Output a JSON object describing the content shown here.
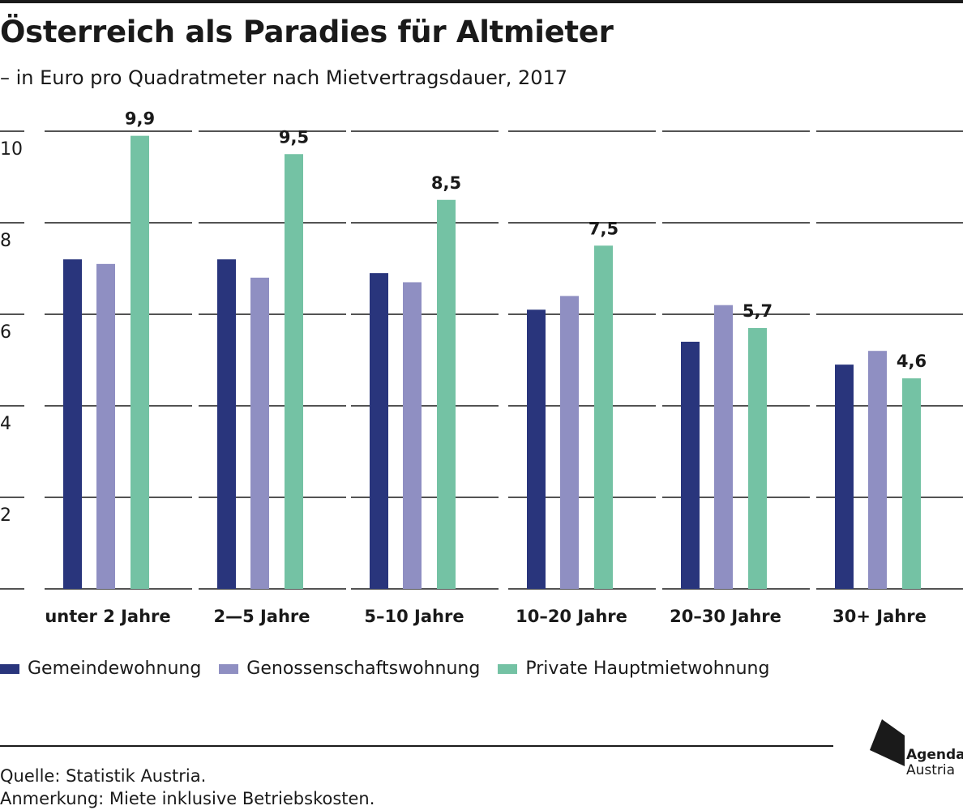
{
  "header": {
    "title": "Österreich als Paradies für Altmieter",
    "subtitle": "– in Euro pro Quadratmeter nach Mietvertragsdauer, 2017"
  },
  "chart_data": {
    "type": "bar",
    "title": "Österreich als Paradies für Altmieter",
    "subtitle": "– in Euro pro Quadratmeter nach Mietvertragsdauer, 2017",
    "categories": [
      "unter 2 Jahre",
      "2—5 Jahre",
      "5–10 Jahre",
      "10–20 Jahre",
      "20–30 Jahre",
      "30+ Jahre"
    ],
    "series": [
      {
        "name": "Gemeindewohnung",
        "color": "#29357c",
        "values": [
          7.2,
          7.2,
          6.9,
          6.1,
          5.4,
          4.9
        ]
      },
      {
        "name": "Genossenschaftswohnung",
        "color": "#8f8fc2",
        "values": [
          7.1,
          6.8,
          6.7,
          6.4,
          6.2,
          5.2
        ]
      },
      {
        "name": "Private Hauptmietwohnung",
        "color": "#74c2a4",
        "values": [
          9.9,
          9.5,
          8.5,
          7.5,
          5.7,
          4.6
        ]
      }
    ],
    "data_labels": [
      "9,9",
      "9,5",
      "8,5",
      "7,5",
      "5,7",
      "4,6"
    ],
    "y_ticks": [
      2,
      4,
      6,
      8,
      10
    ],
    "ylim": [
      0,
      10
    ],
    "xlabel": "",
    "ylabel": "",
    "grid": true,
    "legend": "bottom-left"
  },
  "footer": {
    "source": "Quelle: Statistik Austria.",
    "note": "Anmerkung: Miete inklusive Betriebskosten."
  },
  "logo": {
    "name": "Agenda",
    "sub": "Austria"
  },
  "colors": {
    "text": "#1a1a1a",
    "gemeinde": "#29357c",
    "genossenschaft": "#8f8fc2",
    "privat": "#74c2a4"
  }
}
